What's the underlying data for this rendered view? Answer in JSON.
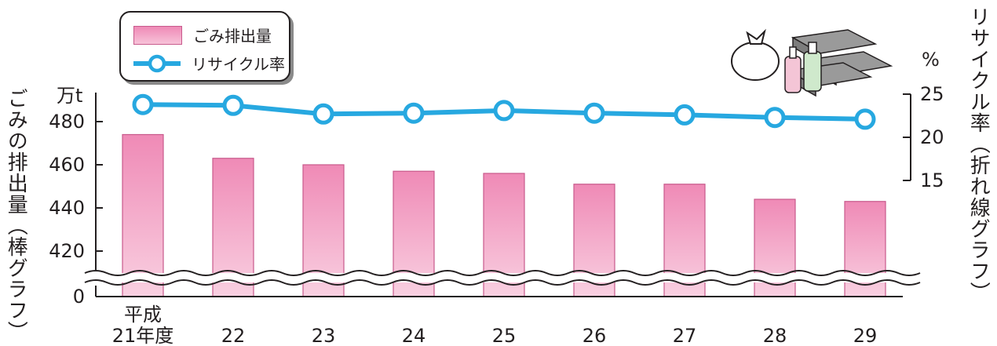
{
  "chart_data": {
    "type": "bar+line",
    "categories": [
      "平成\n21年度",
      "22",
      "23",
      "24",
      "25",
      "26",
      "27",
      "28",
      "29"
    ],
    "series": [
      {
        "name": "ごみ排出量",
        "type": "bar",
        "axis": "left",
        "values": [
          474,
          463,
          460,
          457,
          456,
          451,
          451,
          444,
          443
        ]
      },
      {
        "name": "リサイクル率",
        "type": "line",
        "axis": "right",
        "values": [
          23.8,
          23.7,
          22.7,
          22.8,
          23.1,
          22.8,
          22.6,
          22.3,
          22.1
        ]
      }
    ],
    "left_axis": {
      "label": "ごみの排出量（棒グラフ）",
      "unit": "万t",
      "ticks": [
        0,
        420,
        440,
        460,
        480
      ],
      "ylim": [
        410,
        485
      ],
      "broken": true
    },
    "right_axis": {
      "label": "リサイクル率（折れ線グラフ）",
      "unit": "%",
      "ticks": [
        15,
        20,
        25
      ],
      "ylim": [
        15,
        25
      ]
    },
    "legend": {
      "position": "top-left",
      "entries": [
        "ごみ排出量",
        "リサイクル率"
      ]
    },
    "grid": false,
    "colors": {
      "bar_top": "#ef8ab6",
      "bar_bottom": "#f7c3d9",
      "bar_edge": "#c85a8c",
      "line": "#27a8e0",
      "axis": "#231f20"
    },
    "illustration": "recyclable-trash-icon"
  }
}
